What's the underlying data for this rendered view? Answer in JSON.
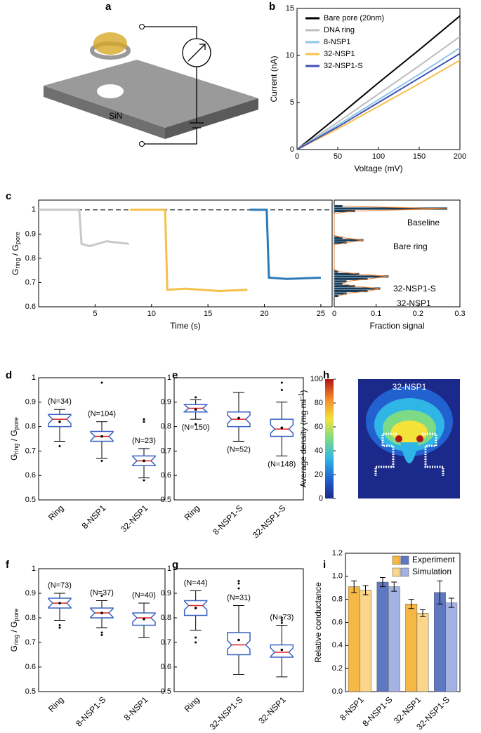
{
  "panel_labels": [
    "a",
    "b",
    "c",
    "d",
    "e",
    "f",
    "g",
    "h",
    "i"
  ],
  "schematic": {
    "label": "SiN"
  },
  "chart_data": [
    {
      "type": "line",
      "xlabel": "Voltage (mV)",
      "ylabel": "Current (nA)",
      "x": [
        0,
        50,
        100,
        150,
        200
      ],
      "xlim": [
        0,
        200
      ],
      "xticks": [
        0,
        50,
        100,
        150,
        200
      ],
      "ylim": [
        0,
        15
      ],
      "yticks": [
        0,
        5,
        10,
        15
      ],
      "legend": "upper-left",
      "series": [
        {
          "name": "Bare pore (20nm)",
          "color": "#000000",
          "values": [
            0,
            3.5,
            7.1,
            10.6,
            14.2
          ]
        },
        {
          "name": "DNA ring",
          "color": "#bdbdbd",
          "values": [
            0,
            2.9,
            5.9,
            8.9,
            12.0
          ]
        },
        {
          "name": "8-NSP1",
          "color": "#8ec6e8",
          "values": [
            0,
            2.6,
            5.3,
            8.0,
            10.8
          ]
        },
        {
          "name": "32-NSP1",
          "color": "#f7c04a",
          "values": [
            0,
            2.2,
            4.6,
            7.0,
            9.5
          ]
        },
        {
          "name": "32-NSP1-S",
          "color": "#3f51b5",
          "values": [
            0,
            2.4,
            5.0,
            7.6,
            10.2
          ]
        }
      ]
    },
    {
      "type": "line",
      "xlabel": "Time (s)",
      "ylabel": [
        "G",
        "ring",
        " / G",
        "pore"
      ],
      "x": [
        0,
        3.6,
        3.8,
        4.5,
        6,
        8,
        8.1,
        11.2,
        11.4,
        13,
        16,
        18.5,
        18.7,
        20.2,
        20.4,
        22,
        25
      ],
      "xlim": [
        0,
        26
      ],
      "xticks": [
        5,
        10,
        15,
        20,
        25
      ],
      "ylim": [
        0.6,
        1.04
      ],
      "yticks": [
        0.6,
        0.7,
        0.8,
        0.9,
        1
      ],
      "reference_line": 1,
      "series": [
        {
          "color": "#c8c8c8",
          "values": [
            1,
            1,
            0.86,
            0.85,
            0.87,
            0.86,
            null,
            null,
            null,
            null,
            null,
            null,
            null,
            null,
            null,
            null,
            null
          ]
        },
        {
          "color": "#f5c04a",
          "values": [
            null,
            null,
            null,
            null,
            null,
            null,
            1,
            1,
            0.67,
            0.675,
            0.665,
            0.67,
            null,
            null,
            null,
            null,
            null
          ]
        },
        {
          "color": "#2a7ab8",
          "values": [
            null,
            null,
            null,
            null,
            null,
            null,
            null,
            null,
            null,
            null,
            null,
            null,
            1,
            1,
            0.72,
            0.715,
            0.72
          ]
        }
      ]
    },
    {
      "type": "histogram",
      "orientation": "horizontal",
      "xlabel": "Fraction signal",
      "color": "#163d5c",
      "edge_color": "#f07f2a",
      "bins": [
        0.64,
        0.65,
        0.66,
        0.67,
        0.68,
        0.69,
        0.7,
        0.71,
        0.72,
        0.73,
        0.74,
        0.75,
        0.76,
        0.77,
        0.78,
        0.79,
        0.8,
        0.81,
        0.82,
        0.83,
        0.84,
        0.85,
        0.86,
        0.87,
        0.88,
        0.89,
        0.9,
        0.91,
        0.92,
        0.93,
        0.94,
        0.95,
        0.96,
        0.97,
        0.98,
        0.99,
        1.0,
        1.01,
        1.02
      ],
      "counts": [
        0.01,
        0.03,
        0.08,
        0.11,
        0.05,
        0.02,
        0.03,
        0.08,
        0.13,
        0.06,
        0.01,
        0,
        0,
        0,
        0,
        0,
        0,
        0,
        0,
        0,
        0,
        0,
        0.03,
        0.07,
        0.02,
        0,
        0,
        0,
        0,
        0,
        0,
        0,
        0,
        0,
        0,
        0.05,
        0.27,
        0.02
      ],
      "xlim": [
        0,
        0.3
      ],
      "xticks": [
        0,
        0.1,
        0.2,
        0.3
      ],
      "ylim": [
        0.6,
        1.04
      ],
      "annotations": [
        "Baseline",
        "Bare ring",
        "32-NSP1-S",
        "32-NSP1"
      ]
    },
    {
      "type": "box",
      "ylabel": [
        "G",
        "ring",
        " / G",
        "pore"
      ],
      "ylim": [
        0.5,
        1
      ],
      "yticks": [
        0.5,
        0.6,
        0.7,
        0.8,
        0.9,
        1
      ],
      "categories": [
        "Ring",
        "8-NSP1",
        "32-NSP1"
      ],
      "n_labels": [
        "(N=34)",
        "(N=104)",
        "(N=23)"
      ],
      "boxes": [
        {
          "min": 0.74,
          "q1": 0.8,
          "median": 0.83,
          "q3": 0.85,
          "max": 0.87,
          "mean": 0.82,
          "outliers": [
            0.72
          ]
        },
        {
          "min": 0.67,
          "q1": 0.74,
          "median": 0.76,
          "q3": 0.78,
          "max": 0.82,
          "mean": 0.76,
          "outliers": [
            0.66,
            0.98
          ]
        },
        {
          "min": 0.59,
          "q1": 0.64,
          "median": 0.66,
          "q3": 0.68,
          "max": 0.71,
          "mean": 0.66,
          "outliers": [
            0.58,
            0.82,
            0.83
          ]
        }
      ]
    },
    {
      "type": "box",
      "ylim": [
        0.5,
        1
      ],
      "yticks": [
        0.5,
        0.6,
        0.7,
        0.8,
        0.9,
        1
      ],
      "categories": [
        "Ring",
        "8-NSP1-S",
        "32-NSP1-S"
      ],
      "n_labels": [
        "(N=150)",
        "(N=52)",
        "(N=148)"
      ],
      "boxes": [
        {
          "min": 0.83,
          "q1": 0.86,
          "median": 0.875,
          "q3": 0.89,
          "max": 0.91,
          "mean": 0.87,
          "outliers": [
            0.81,
            0.92
          ]
        },
        {
          "min": 0.74,
          "q1": 0.8,
          "median": 0.83,
          "q3": 0.86,
          "max": 0.94,
          "mean": 0.835,
          "outliers": []
        },
        {
          "min": 0.68,
          "q1": 0.76,
          "median": 0.79,
          "q3": 0.83,
          "max": 0.9,
          "mean": 0.795,
          "outliers": [
            0.95,
            0.98
          ]
        }
      ]
    },
    {
      "type": "heatmap",
      "title": "32-NSP1",
      "colorbar_label": [
        "Average density (mg ml",
        "−1",
        ")"
      ],
      "clim": [
        0,
        100
      ],
      "cticks": [
        0,
        20,
        40,
        60,
        80,
        100
      ],
      "colormap": [
        "#1b2a8a",
        "#2261d0",
        "#2fb6e6",
        "#7ddb86",
        "#f2e23a",
        "#f58a28",
        "#b01515"
      ]
    },
    {
      "type": "box",
      "ylabel": [
        "G",
        "ring",
        " / G",
        "pore"
      ],
      "ylim": [
        0.5,
        1
      ],
      "yticks": [
        0.5,
        0.6,
        0.7,
        0.8,
        0.9,
        1
      ],
      "categories": [
        "Ring",
        "8-NSP1-S",
        "8-NSP1"
      ],
      "n_labels": [
        "(N=73)",
        "(N=37)",
        "(N=40)"
      ],
      "boxes": [
        {
          "min": 0.79,
          "q1": 0.84,
          "median": 0.86,
          "q3": 0.88,
          "max": 0.9,
          "mean": 0.86,
          "outliers": [
            0.76,
            0.77
          ]
        },
        {
          "min": 0.76,
          "q1": 0.8,
          "median": 0.82,
          "q3": 0.84,
          "max": 0.87,
          "mean": 0.82,
          "outliers": [
            0.73,
            0.74,
            0.89
          ]
        },
        {
          "min": 0.72,
          "q1": 0.77,
          "median": 0.8,
          "q3": 0.82,
          "max": 0.86,
          "mean": 0.795,
          "outliers": []
        }
      ]
    },
    {
      "type": "box",
      "ylim": [
        0.5,
        1
      ],
      "yticks": [
        0.5,
        0.6,
        0.7,
        0.8,
        0.9,
        1
      ],
      "categories": [
        "Ring",
        "32-NSP1-S",
        "32-NSP1"
      ],
      "n_labels": [
        "(N=44)",
        "(N=31)",
        "(N=73)"
      ],
      "boxes": [
        {
          "min": 0.75,
          "q1": 0.81,
          "median": 0.85,
          "q3": 0.87,
          "max": 0.91,
          "mean": 0.84,
          "outliers": [
            0.7,
            0.72
          ]
        },
        {
          "min": 0.57,
          "q1": 0.65,
          "median": 0.69,
          "q3": 0.74,
          "max": 0.85,
          "mean": 0.71,
          "outliers": [
            0.92,
            0.94,
            0.95
          ]
        },
        {
          "min": 0.56,
          "q1": 0.64,
          "median": 0.66,
          "q3": 0.69,
          "max": 0.77,
          "mean": 0.67,
          "outliers": [
            0.78,
            0.79,
            0.8
          ]
        }
      ]
    },
    {
      "type": "bar",
      "ylabel": "Relative conductance",
      "categories": [
        "8-NSP1",
        "8-NSP1-S",
        "32-NSP1",
        "32-NSP1-S"
      ],
      "ylim": [
        0,
        1.2
      ],
      "yticks": [
        {
          "value": 0,
          "label": "0.0"
        },
        0.2,
        0.4,
        0.6,
        0.8,
        {
          "value": 1,
          "label": "1.0"
        },
        1.2
      ],
      "legend": "upper-right",
      "series": [
        {
          "name": "Experiment",
          "colors": [
            "#f6b845",
            "#5e78c2",
            "#f6b845",
            "#5e78c2"
          ],
          "values": [
            0.91,
            0.95,
            0.76,
            0.86
          ],
          "errors": [
            0.05,
            0.04,
            0.04,
            0.1
          ]
        },
        {
          "name": "Simulation",
          "colors": [
            "#fad58a",
            "#a3b2e2",
            "#fad58a",
            "#a3b2e2"
          ],
          "values": [
            0.88,
            0.91,
            0.68,
            0.77
          ],
          "errors": [
            0.04,
            0.04,
            0.03,
            0.04
          ]
        }
      ]
    }
  ]
}
